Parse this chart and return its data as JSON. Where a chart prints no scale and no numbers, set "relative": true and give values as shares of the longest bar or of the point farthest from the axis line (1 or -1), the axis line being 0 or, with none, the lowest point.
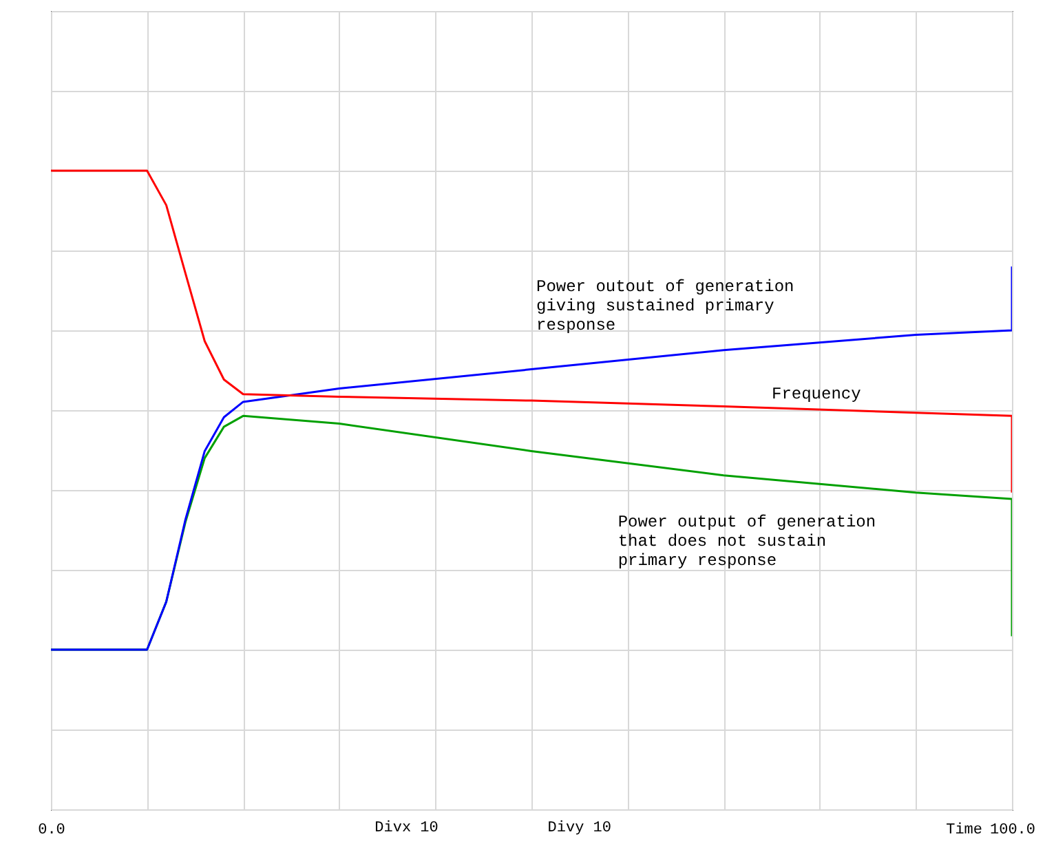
{
  "chart_data": {
    "type": "line",
    "relative": true,
    "grid": true,
    "legend": false,
    "line_style": "solid",
    "xlabel": "Time",
    "xlim": [
      0,
      100
    ],
    "xticks": [
      {
        "value": 0,
        "label": "0.0"
      },
      {
        "value": 10,
        "label": null
      },
      {
        "value": 20,
        "label": null
      },
      {
        "value": 30,
        "label": null
      },
      {
        "value": 40,
        "label": null
      },
      {
        "value": 50,
        "label": null
      },
      {
        "value": 60,
        "label": null
      },
      {
        "value": 70,
        "label": null
      },
      {
        "value": 80,
        "label": null
      },
      {
        "value": 90,
        "label": null
      },
      {
        "value": 100,
        "label": "100.0"
      }
    ],
    "series": [
      {
        "color": "#ff0000",
        "x": [
          0,
          10,
          12,
          14,
          16,
          18,
          20,
          30,
          50,
          70,
          90,
          100,
          100
        ],
        "values": [
          1,
          1,
          0.946,
          0.839,
          0.733,
          0.673,
          0.65,
          0.646,
          0.64,
          0.631,
          0.621,
          0.616,
          0.496
        ]
      },
      {
        "color": "#0000ff",
        "x": [
          0,
          10,
          12,
          14,
          16,
          18,
          20,
          30,
          50,
          70,
          90,
          100,
          100
        ],
        "values": [
          0.25,
          0.25,
          0.325,
          0.454,
          0.561,
          0.614,
          0.638,
          0.659,
          0.689,
          0.719,
          0.743,
          0.75,
          0.85
        ]
      },
      {
        "color": "#00a000",
        "x": [
          0,
          10,
          12,
          14,
          16,
          18,
          20,
          30,
          50,
          70,
          90,
          100,
          100
        ],
        "values": [
          0.25,
          0.25,
          0.325,
          0.45,
          0.55,
          0.599,
          0.616,
          0.604,
          0.561,
          0.523,
          0.496,
          0.486,
          0.271
        ]
      }
    ],
    "annotations": [
      "Power outout of generation\ngiving sustained primary\nresponse",
      "Frequency",
      "Power output of generation\nthat does not sustain\nprimary response",
      "Divx 10",
      "Divy 10"
    ]
  }
}
